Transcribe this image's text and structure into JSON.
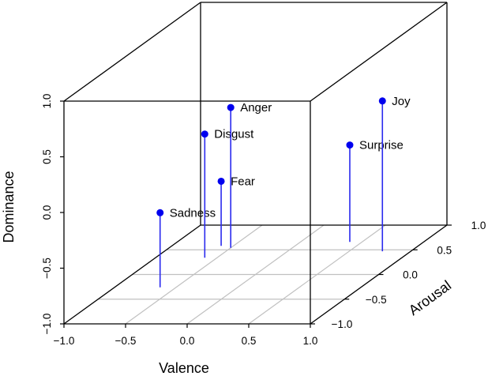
{
  "chart_data": {
    "type": "scatter3d",
    "title": "",
    "xlabel": "Valence",
    "ylabel": "Arousal",
    "zlabel": "Dominance",
    "xlim": [
      -1.0,
      1.0
    ],
    "ylim": [
      -1.0,
      1.0
    ],
    "zlim": [
      -1.0,
      1.0
    ],
    "x_ticks": [
      "−1.0",
      "−0.5",
      "0.0",
      "0.5",
      "1.0"
    ],
    "y_ticks": [
      "−1.0",
      "−0.5",
      "0.0",
      "0.5",
      "1.0"
    ],
    "z_ticks": [
      "−1.0",
      "−0.5",
      "0.0",
      "0.5",
      "1.0"
    ],
    "grid": "floor",
    "point_style": "filled circle with vertical drop line to floor",
    "point_color": "#0000ee",
    "points": [
      {
        "label": "Sadness",
        "valence": -0.63,
        "arousal": -0.26,
        "dominance": -0.33
      },
      {
        "label": "Disgust",
        "valence": -0.6,
        "arousal": 0.34,
        "dominance": 0.11
      },
      {
        "label": "Fear",
        "valence": -0.6,
        "arousal": 0.58,
        "dominance": -0.42
      },
      {
        "label": "Anger",
        "valence": -0.5,
        "arousal": 0.54,
        "dominance": 0.26
      },
      {
        "label": "Surprise",
        "valence": 0.4,
        "arousal": 0.66,
        "dominance": -0.13
      },
      {
        "label": "Joy",
        "valence": 0.77,
        "arousal": 0.47,
        "dominance": 0.35
      }
    ]
  },
  "colors": {
    "box": "#000000",
    "grid": "#c0c0c0",
    "points": "#0000ee",
    "stems": "#2a2aee"
  },
  "axes": {
    "valence": {
      "title": "Valence"
    },
    "arousal": {
      "title": "Arousal"
    },
    "dominance": {
      "title": "Dominance"
    }
  }
}
